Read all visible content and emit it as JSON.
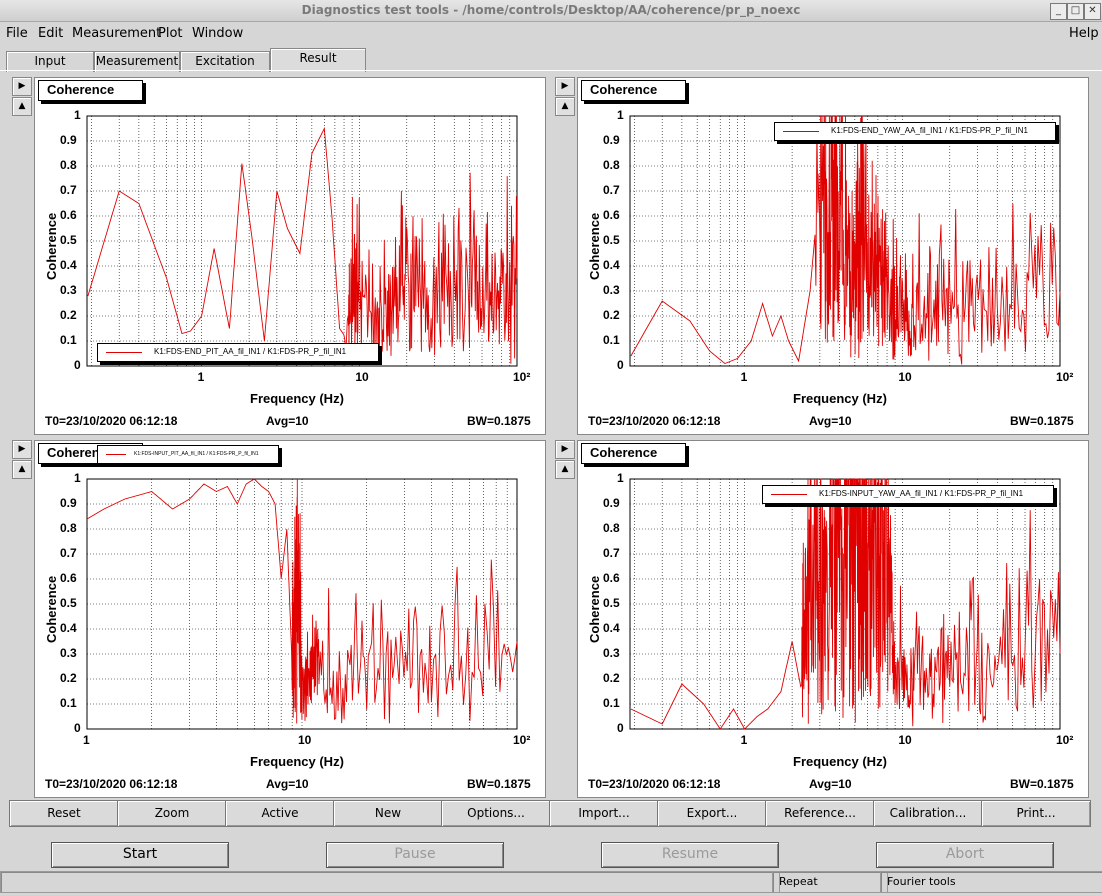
{
  "window": {
    "title": "Diagnostics test tools - /home/controls/Desktop/AA/coherence/pr_p_noexc"
  },
  "menu": [
    "File",
    "Edit",
    "Measurement",
    "Plot",
    "Window"
  ],
  "menu_help": "Help",
  "tabs": [
    "Input",
    "Measurement",
    "Excitation",
    "Result"
  ],
  "active_tab": "Result",
  "plots": [
    {
      "title": "Coherence",
      "legend": "K1:FDS-END_PIT_AA_fil_IN1 / K1:FDS-PR_P_fil_IN1",
      "t0": "T0=23/10/2020 06:12:18",
      "avg": "Avg=10",
      "bw": "BW=0.1875",
      "xlabel": "Frequency (Hz)",
      "ylabel": "Coherence",
      "xticks": [
        "1",
        "10",
        "10²"
      ]
    },
    {
      "title": "Coherence",
      "legend": "K1:FDS-END_YAW_AA_fil_IN1 / K1:FDS-PR_P_fil_IN1",
      "t0": "T0=23/10/2020 06:12:18",
      "avg": "Avg=10",
      "bw": "BW=0.1875",
      "xlabel": "Frequency (Hz)",
      "ylabel": "Coherence",
      "xticks": [
        "1",
        "10",
        "10²"
      ]
    },
    {
      "title": "Coherence",
      "legend": "K1:FDS-INPUT_PIT_AA_fil_IN1 / K1:FDS-PR_P_fil_IN1",
      "t0": "T0=23/10/2020 06:12:18",
      "avg": "Avg=10",
      "bw": "BW=0.1875",
      "xlabel": "Frequency (Hz)",
      "ylabel": "Coherence",
      "xticks": [
        "1",
        "10",
        "10²"
      ]
    },
    {
      "title": "Coherence",
      "legend": "K1:FDS-INPUT_YAW_AA_fil_IN1 / K1:FDS-PR_P_fil_IN1",
      "t0": "T0=23/10/2020 06:12:18",
      "avg": "Avg=10",
      "bw": "BW=0.1875",
      "xlabel": "Frequency (Hz)",
      "ylabel": "Coherence",
      "xticks": [
        "1",
        "10",
        "10²"
      ]
    }
  ],
  "yticks": [
    "0",
    "0.1",
    "0.2",
    "0.3",
    "0.4",
    "0.5",
    "0.6",
    "0.7",
    "0.8",
    "0.9",
    "1"
  ],
  "toolbar": [
    "Reset",
    "Zoom",
    "Active",
    "New",
    "Options...",
    "Import...",
    "Export...",
    "Reference...",
    "Calibration...",
    "Print..."
  ],
  "controls": {
    "start": "Start",
    "pause": "Pause",
    "resume": "Resume",
    "abort": "Abort"
  },
  "status": {
    "repeat": "Repeat",
    "tools": "Fourier tools"
  },
  "colors": {
    "trace": "#e00000",
    "grid": "#000000"
  },
  "chart_data": [
    {
      "type": "line",
      "xscale": "log",
      "xlim": [
        0.1875,
        100
      ],
      "ylim": [
        0,
        1
      ],
      "x": [
        0.19,
        0.3,
        0.4,
        0.6,
        0.75,
        0.85,
        1.0,
        1.2,
        1.5,
        1.8,
        2.1,
        2.5,
        3.0,
        3.5,
        4.2,
        5.0,
        6.0,
        6.7,
        7.5,
        8.5,
        10,
        15,
        20,
        30,
        50,
        70,
        100
      ],
      "y": [
        0.28,
        0.7,
        0.65,
        0.35,
        0.13,
        0.14,
        0.2,
        0.47,
        0.15,
        0.81,
        0.5,
        0.1,
        0.7,
        0.55,
        0.45,
        0.85,
        0.95,
        0.6,
        0.15,
        0.1,
        0.2,
        0.12,
        0.25,
        0.15,
        0.3,
        0.2,
        0.35
      ],
      "noise": {
        "from": 8,
        "amp": 0.5
      }
    },
    {
      "type": "line",
      "xscale": "log",
      "xlim": [
        0.1875,
        100
      ],
      "ylim": [
        0,
        1
      ],
      "x": [
        0.19,
        0.3,
        0.45,
        0.6,
        0.75,
        0.9,
        1.1,
        1.3,
        1.5,
        1.7,
        1.9,
        2.2,
        2.6,
        3.0,
        3.5,
        4.0,
        4.8,
        5.5,
        6.5,
        7.5,
        9,
        12,
        20,
        40,
        100
      ],
      "y": [
        0.04,
        0.26,
        0.18,
        0.06,
        0.01,
        0.03,
        0.1,
        0.25,
        0.12,
        0.2,
        0.1,
        0.02,
        0.3,
        0.75,
        0.6,
        0.72,
        0.35,
        0.6,
        0.3,
        0.2,
        0.15,
        0.1,
        0.2,
        0.15,
        0.3
      ],
      "noise": {
        "from": 2.8,
        "amp": 0.55
      }
    },
    {
      "type": "line",
      "xscale": "log",
      "xlim": [
        1,
        100
      ],
      "ylim": [
        0,
        1
      ],
      "x": [
        1,
        1.2,
        1.5,
        2,
        2.5,
        3,
        3.5,
        4,
        4.5,
        5,
        5.5,
        6,
        6.5,
        7,
        7.5,
        8,
        8.5,
        9,
        9.5,
        10,
        12,
        20,
        40,
        100
      ],
      "y": [
        0.84,
        0.88,
        0.92,
        0.95,
        0.88,
        0.92,
        0.98,
        0.95,
        0.97,
        0.9,
        0.98,
        1.0,
        0.97,
        0.95,
        0.9,
        0.6,
        0.8,
        0.25,
        0.6,
        0.15,
        0.12,
        0.2,
        0.2,
        0.35
      ],
      "noise": {
        "from": 9,
        "amp": 0.45
      }
    },
    {
      "type": "line",
      "xscale": "log",
      "xlim": [
        0.1875,
        100
      ],
      "ylim": [
        0,
        1
      ],
      "x": [
        0.19,
        0.3,
        0.4,
        0.55,
        0.7,
        0.85,
        1.0,
        1.2,
        1.4,
        1.7,
        2.0,
        2.3,
        2.7,
        3.2,
        3.8,
        4.5,
        5.2,
        6.0,
        7.0,
        8.0,
        9.0,
        12,
        20,
        40,
        100
      ],
      "y": [
        0.08,
        0.02,
        0.18,
        0.1,
        0.0,
        0.08,
        0.0,
        0.05,
        0.08,
        0.15,
        0.35,
        0.15,
        0.75,
        0.5,
        0.85,
        0.75,
        0.88,
        0.9,
        0.6,
        0.85,
        0.15,
        0.1,
        0.2,
        0.2,
        0.3
      ],
      "noise": {
        "from": 2.3,
        "amp": 0.5
      }
    }
  ]
}
